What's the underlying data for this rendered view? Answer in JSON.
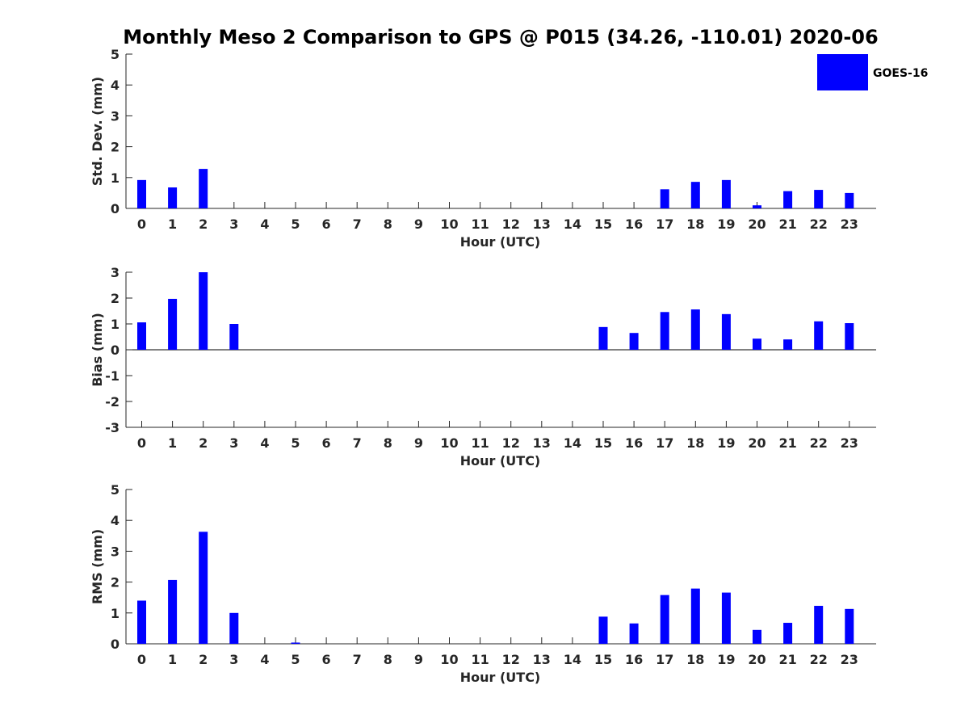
{
  "figure": {
    "title": "Monthly Meso 2 Comparison to GPS @ P015 (34.26, -110.01) 2020-06"
  },
  "legend": {
    "label": "GOES-16",
    "color": "#0000ff",
    "placement": "top-right"
  },
  "chart_data": [
    {
      "type": "bar",
      "panel": "std-dev",
      "xlabel": "Hour (UTC)",
      "ylabel": "Std. Dev. (mm)",
      "ylim": [
        0,
        5
      ],
      "yticks": [
        0,
        1,
        2,
        3,
        4,
        5
      ],
      "grid": false,
      "categories": [
        "0",
        "1",
        "2",
        "3",
        "4",
        "5",
        "6",
        "7",
        "8",
        "9",
        "10",
        "11",
        "12",
        "13",
        "14",
        "15",
        "16",
        "17",
        "18",
        "19",
        "20",
        "21",
        "22",
        "23"
      ],
      "series": [
        {
          "name": "GOES-16",
          "color": "#0000ff",
          "values": [
            0.92,
            0.68,
            1.28,
            0,
            0,
            0,
            0,
            0,
            0,
            0,
            0,
            0,
            0,
            0,
            0,
            0,
            0,
            0.62,
            0.86,
            0.92,
            0.1,
            0.56,
            0.6,
            0.5
          ]
        }
      ]
    },
    {
      "type": "bar",
      "panel": "bias",
      "xlabel": "Hour (UTC)",
      "ylabel": "Bias (mm)",
      "ylim": [
        -3,
        3
      ],
      "yticks": [
        -3,
        -2,
        -1,
        0,
        1,
        2,
        3
      ],
      "grid": false,
      "categories": [
        "0",
        "1",
        "2",
        "3",
        "4",
        "5",
        "6",
        "7",
        "8",
        "9",
        "10",
        "11",
        "12",
        "13",
        "14",
        "15",
        "16",
        "17",
        "18",
        "19",
        "20",
        "21",
        "22",
        "23"
      ],
      "series": [
        {
          "name": "GOES-16",
          "color": "#0000ff",
          "values": [
            1.06,
            1.97,
            3.0,
            1.0,
            0,
            0,
            0,
            0,
            0,
            0,
            0,
            0,
            0,
            0,
            0,
            0.88,
            0.65,
            1.46,
            1.56,
            1.38,
            0.43,
            0.4,
            1.1,
            1.03
          ]
        }
      ]
    },
    {
      "type": "bar",
      "panel": "rms",
      "xlabel": "Hour (UTC)",
      "ylabel": "RMS (mm)",
      "ylim": [
        0,
        5
      ],
      "yticks": [
        0,
        1,
        2,
        3,
        4,
        5
      ],
      "grid": false,
      "categories": [
        "0",
        "1",
        "2",
        "3",
        "4",
        "5",
        "6",
        "7",
        "8",
        "9",
        "10",
        "11",
        "12",
        "13",
        "14",
        "15",
        "16",
        "17",
        "18",
        "19",
        "20",
        "21",
        "22",
        "23"
      ],
      "series": [
        {
          "name": "GOES-16",
          "color": "#0000ff",
          "values": [
            1.4,
            2.07,
            3.63,
            1.0,
            0,
            0.04,
            0,
            0,
            0,
            0,
            0,
            0,
            0,
            0,
            0,
            0.88,
            0.66,
            1.58,
            1.79,
            1.66,
            0.45,
            0.68,
            1.23,
            1.13
          ]
        }
      ]
    }
  ]
}
